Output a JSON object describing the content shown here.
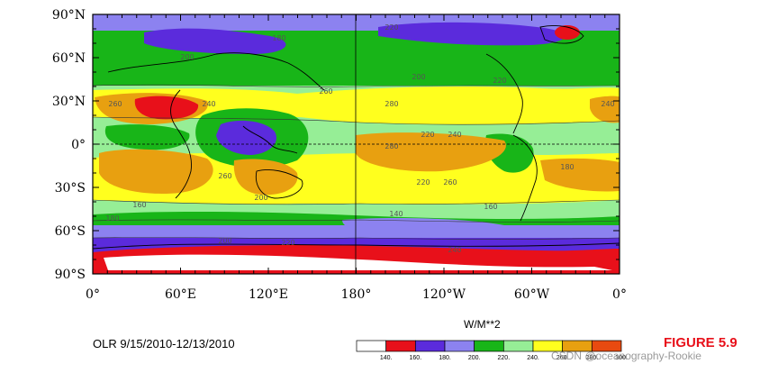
{
  "map": {
    "lat_labels": [
      "90°N",
      "60°N",
      "30°N",
      "0°",
      "30°S",
      "60°S",
      "90°S"
    ],
    "lon_labels": [
      "0°",
      "60°E",
      "120°E",
      "180°",
      "120°W",
      "60°W",
      "0°"
    ],
    "contour_labels": [
      "180",
      "200",
      "220",
      "240",
      "260",
      "280",
      "200",
      "220",
      "240",
      "260",
      "280",
      "220",
      "240",
      "260",
      "200",
      "220",
      "260",
      "180",
      "160",
      "140",
      "160",
      "180",
      "200",
      "220",
      "240"
    ]
  },
  "caption": "OLR  9/15/2010-12/13/2010",
  "colorbar": {
    "units": "W/M**2",
    "ticks": [
      "140.",
      "160.",
      "180.",
      "200.",
      "220.",
      "240.",
      "260.",
      "280.",
      "300."
    ],
    "colors": [
      "#ffffff",
      "#e8101a",
      "#5b2bdc",
      "#8c82f0",
      "#18b518",
      "#96ee96",
      "#ffff1e",
      "#e8a010",
      "#e84a10"
    ]
  },
  "figure_label": "FIGURE 5.9",
  "watermark": "CSDN @oceanography-Rookie"
}
